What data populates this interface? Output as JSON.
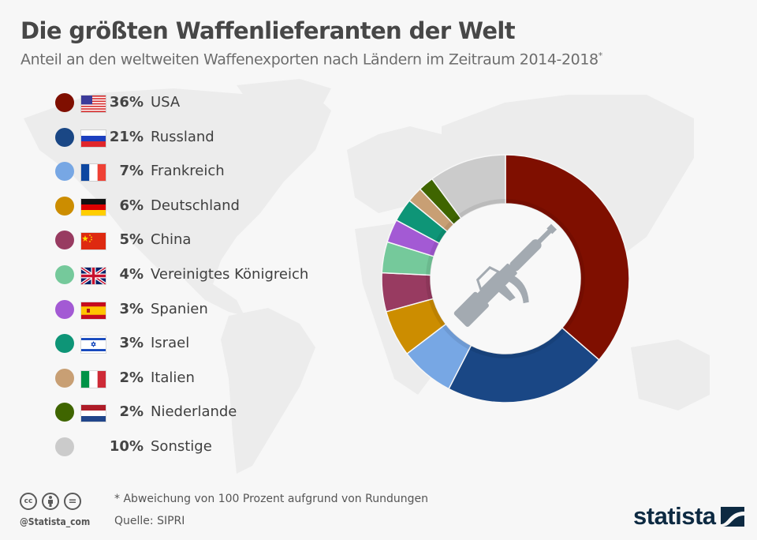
{
  "header": {
    "title": "Die größten Waffenlieferanten der Welt",
    "subtitle": "Anteil an den weltweiten Waffenexporten nach Ländern im Zeitraum 2014-2018",
    "subtitle_mark": "*"
  },
  "center_icon": "rifle-icon",
  "chart_data": {
    "type": "pie",
    "variant": "donut",
    "title": "Die größten Waffenlieferanten der Welt",
    "subtitle": "Anteil an den weltweiten Waffenexporten nach Ländern im Zeitraum 2014-2018*",
    "unit": "%",
    "start": "top, clockwise",
    "slices": [
      {
        "label": "USA",
        "value": 36,
        "pct_label": "36%",
        "color": "#7f0f00",
        "flag": "us-flag"
      },
      {
        "label": "Russland",
        "value": 21,
        "pct_label": "21%",
        "color": "#1a4785",
        "flag": "ru-flag"
      },
      {
        "label": "Frankreich",
        "value": 7,
        "pct_label": "7%",
        "color": "#77a7e4",
        "flag": "fr-flag"
      },
      {
        "label": "Deutschland",
        "value": 6,
        "pct_label": "6%",
        "color": "#cc8d00",
        "flag": "de-flag"
      },
      {
        "label": "China",
        "value": 5,
        "pct_label": "5%",
        "color": "#983b61",
        "flag": "cn-flag"
      },
      {
        "label": "Vereinigtes Königreich",
        "value": 4,
        "pct_label": "4%",
        "color": "#75c99b",
        "flag": "gb-flag"
      },
      {
        "label": "Spanien",
        "value": 3,
        "pct_label": "3%",
        "color": "#a35ad4",
        "flag": "es-flag"
      },
      {
        "label": "Israel",
        "value": 3,
        "pct_label": "3%",
        "color": "#0e9577",
        "flag": "il-flag"
      },
      {
        "label": "Italien",
        "value": 2,
        "pct_label": "2%",
        "color": "#c89f74",
        "flag": "it-flag"
      },
      {
        "label": "Niederlande",
        "value": 2,
        "pct_label": "2%",
        "color": "#3f6500",
        "flag": "nl-flag"
      },
      {
        "label": "Sonstige",
        "value": 10,
        "pct_label": "10%",
        "color": "#cbcbcb",
        "flag": null
      }
    ],
    "legend_position": "left"
  },
  "footer": {
    "note": "* Abweichung von 100 Prozent aufgrund von Rundungen",
    "source": "Quelle: SIPRI",
    "handle": "@Statista_com",
    "license_icons": [
      "cc-icon",
      "attribution-icon",
      "no-derivatives-icon"
    ],
    "license_labels": [
      "cc",
      "",
      "="
    ],
    "brand": "statista"
  }
}
